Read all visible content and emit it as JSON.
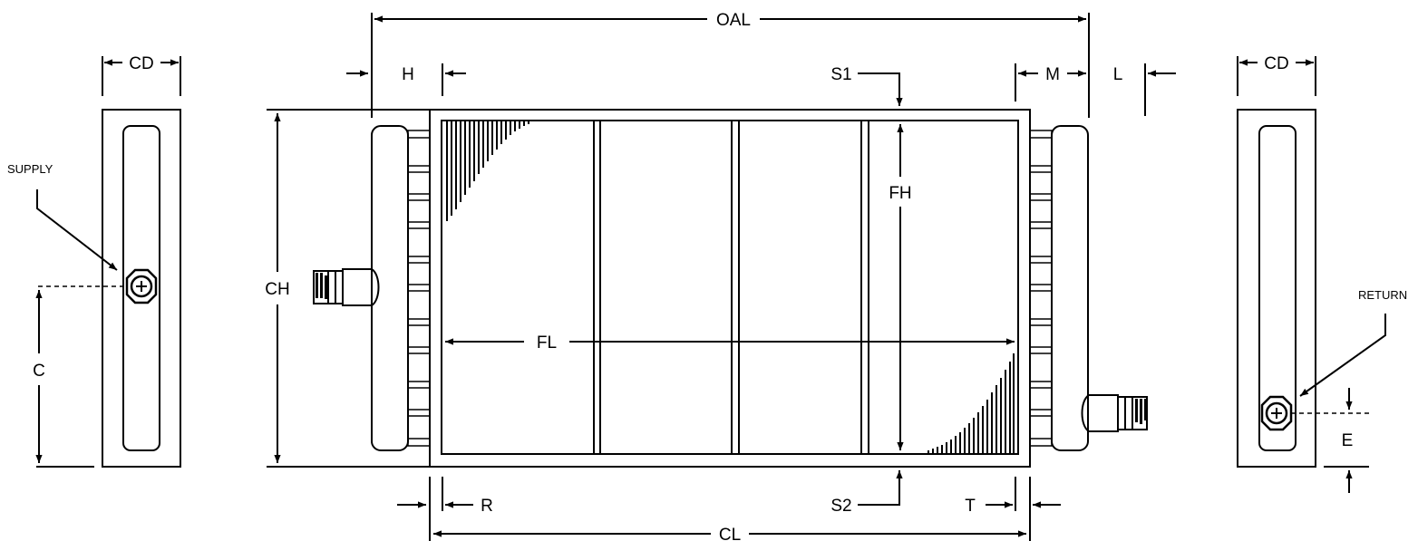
{
  "labels": {
    "oal": "OAL",
    "cd_left": "CD",
    "cd_right": "CD",
    "h": "H",
    "s1": "S1",
    "m": "M",
    "l": "L",
    "fh": "FH",
    "ch": "CH",
    "fl": "FL",
    "supply": "SUPPLY",
    "return": "RETURN",
    "c": "C",
    "e": "E",
    "r": "R",
    "s2": "S2",
    "t": "T",
    "cl": "CL"
  }
}
